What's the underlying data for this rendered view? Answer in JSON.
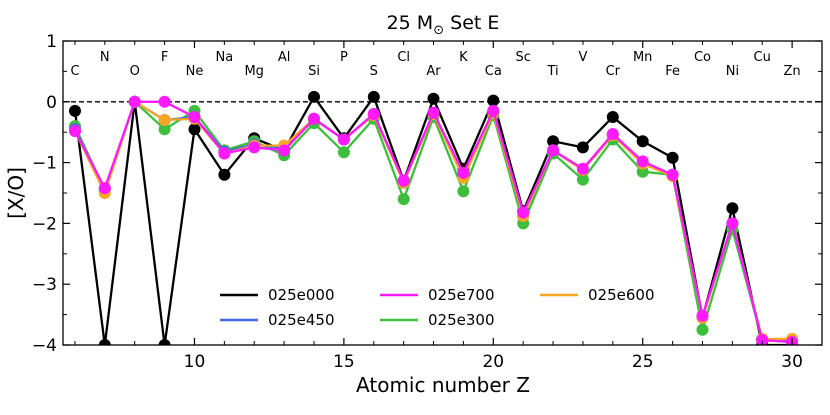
{
  "chart_data": {
    "type": "line",
    "title_main": "25 M",
    "title_sub": "⊙",
    "title_rest": " Set E",
    "xlabel": "Atomic number Z",
    "ylabel": "[X/O]",
    "xlim": [
      5.6,
      31.0
    ],
    "ylim": [
      -4,
      1
    ],
    "xticks": [
      10,
      15,
      20,
      25,
      30
    ],
    "yticks": [
      1,
      0,
      -1,
      -2,
      -3,
      -4
    ],
    "reference_line_y": 0,
    "legend_position": "lower-center",
    "elements": [
      {
        "z": 6,
        "symbol": "C",
        "row": "low"
      },
      {
        "z": 7,
        "symbol": "N",
        "row": "high"
      },
      {
        "z": 8,
        "symbol": "O",
        "row": "low"
      },
      {
        "z": 9,
        "symbol": "F",
        "row": "high"
      },
      {
        "z": 10,
        "symbol": "Ne",
        "row": "low"
      },
      {
        "z": 11,
        "symbol": "Na",
        "row": "high"
      },
      {
        "z": 12,
        "symbol": "Mg",
        "row": "low"
      },
      {
        "z": 13,
        "symbol": "Al",
        "row": "high"
      },
      {
        "z": 14,
        "symbol": "Si",
        "row": "low"
      },
      {
        "z": 15,
        "symbol": "P",
        "row": "high"
      },
      {
        "z": 16,
        "symbol": "S",
        "row": "low"
      },
      {
        "z": 17,
        "symbol": "Cl",
        "row": "high"
      },
      {
        "z": 18,
        "symbol": "Ar",
        "row": "low"
      },
      {
        "z": 19,
        "symbol": "K",
        "row": "high"
      },
      {
        "z": 20,
        "symbol": "Ca",
        "row": "low"
      },
      {
        "z": 21,
        "symbol": "Sc",
        "row": "high"
      },
      {
        "z": 22,
        "symbol": "Ti",
        "row": "low"
      },
      {
        "z": 23,
        "symbol": "V",
        "row": "high"
      },
      {
        "z": 24,
        "symbol": "Cr",
        "row": "low"
      },
      {
        "z": 25,
        "symbol": "Mn",
        "row": "high"
      },
      {
        "z": 26,
        "symbol": "Fe",
        "row": "low"
      },
      {
        "z": 27,
        "symbol": "Co",
        "row": "high"
      },
      {
        "z": 28,
        "symbol": "Ni",
        "row": "low"
      },
      {
        "z": 29,
        "symbol": "Cu",
        "row": "high"
      },
      {
        "z": 30,
        "symbol": "Zn",
        "row": "low"
      }
    ],
    "x": [
      6,
      7,
      8,
      9,
      10,
      11,
      12,
      13,
      14,
      15,
      16,
      17,
      18,
      19,
      20,
      21,
      22,
      23,
      24,
      25,
      26,
      27,
      28,
      29,
      30
    ],
    "series": [
      {
        "name": "025e000",
        "color": "#000000",
        "values": [
          -0.15,
          -4.0,
          0.0,
          -4.0,
          -0.45,
          -1.2,
          -0.6,
          -0.8,
          0.08,
          -0.6,
          0.08,
          -1.3,
          0.05,
          -1.1,
          0.02,
          -1.8,
          -0.65,
          -0.75,
          -0.25,
          -0.65,
          -0.92,
          -3.55,
          -1.75,
          -4.0,
          -4.0
        ]
      },
      {
        "name": "025e300",
        "color": "#3dbf3d",
        "values": [
          -0.4,
          -1.45,
          0.0,
          -0.45,
          -0.15,
          -0.8,
          -0.65,
          -0.88,
          -0.35,
          -0.83,
          -0.28,
          -1.6,
          -0.25,
          -1.47,
          -0.22,
          -2.0,
          -0.85,
          -1.28,
          -0.62,
          -1.15,
          -1.2,
          -3.75,
          -2.1,
          -3.92,
          -3.95
        ]
      },
      {
        "name": "025e450",
        "color": "#4169e1",
        "values": [
          -0.45,
          -1.45,
          0.0,
          -0.3,
          -0.25,
          -0.82,
          -0.7,
          -0.77,
          -0.28,
          -0.62,
          -0.2,
          -1.33,
          -0.18,
          -1.2,
          -0.15,
          -1.88,
          -0.8,
          -1.12,
          -0.55,
          -1.0,
          -1.2,
          -3.55,
          -2.0,
          -3.9,
          -3.92
        ]
      },
      {
        "name": "025e600",
        "color": "#f5a623",
        "values": [
          -0.48,
          -1.5,
          0.0,
          -0.3,
          -0.28,
          -0.85,
          -0.72,
          -0.72,
          -0.28,
          -0.62,
          -0.22,
          -1.33,
          -0.2,
          -1.25,
          -0.18,
          -1.88,
          -0.8,
          -1.12,
          -0.55,
          -1.02,
          -1.22,
          -3.55,
          -2.0,
          -3.9,
          -3.9
        ]
      },
      {
        "name": "025e700",
        "color": "#ff1aff",
        "values": [
          -0.48,
          -1.42,
          0.0,
          0.0,
          -0.25,
          -0.85,
          -0.75,
          -0.8,
          -0.28,
          -0.62,
          -0.2,
          -1.3,
          -0.18,
          -1.17,
          -0.15,
          -1.82,
          -0.8,
          -1.1,
          -0.53,
          -0.98,
          -1.2,
          -3.52,
          -2.0,
          -3.92,
          -3.95
        ]
      }
    ],
    "legend_order": [
      0,
      2,
      4,
      1,
      3
    ]
  }
}
